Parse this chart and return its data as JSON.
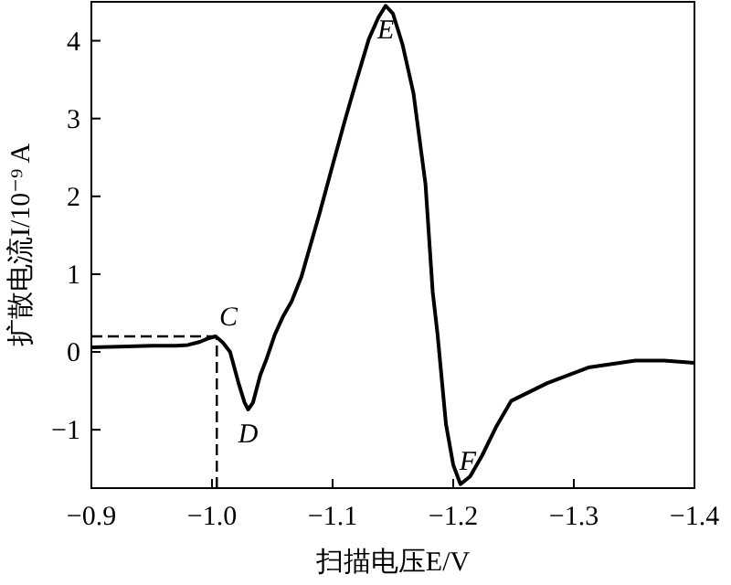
{
  "chart_data": {
    "type": "line",
    "xlabel": "扫描电压E/V",
    "ylabel": "扩散电流I/10⁻⁹ A",
    "x": [
      -0.9,
      -0.93,
      -0.95,
      -0.97,
      -0.98,
      -0.99,
      -0.996,
      -1.003,
      -1.009,
      -1.015,
      -1.022,
      -1.027,
      -1.03,
      -1.034,
      -1.04,
      -1.045,
      -1.052,
      -1.059,
      -1.066,
      -1.074,
      -1.089,
      -1.1,
      -1.111,
      -1.12,
      -1.13,
      -1.138,
      -1.144,
      -1.15,
      -1.158,
      -1.167,
      -1.177,
      -1.183,
      -1.187,
      -1.194,
      -1.2,
      -1.206,
      -1.214,
      -1.224,
      -1.236,
      -1.248,
      -1.278,
      -1.312,
      -1.351,
      -1.375,
      -1.4
    ],
    "series": [
      {
        "color": "#000000",
        "values": [
          0.06,
          0.07,
          0.08,
          0.08,
          0.09,
          0.13,
          0.17,
          0.2,
          0.12,
          0.0,
          -0.4,
          -0.65,
          -0.74,
          -0.65,
          -0.3,
          -0.1,
          0.22,
          0.46,
          0.65,
          0.96,
          1.77,
          2.4,
          3.02,
          3.5,
          4.02,
          4.3,
          4.45,
          4.35,
          3.95,
          3.33,
          2.16,
          0.77,
          0.23,
          -0.93,
          -1.45,
          -1.7,
          -1.6,
          -1.33,
          -0.95,
          -0.63,
          -0.4,
          -0.2,
          -0.11,
          -0.11,
          -0.14
        ]
      }
    ],
    "xlim": [
      -0.9,
      -1.4
    ],
    "xticks": [
      {
        "value": -0.9,
        "label": "−0.9"
      },
      {
        "value": -1.0,
        "label": "−1.0"
      },
      {
        "value": -1.1,
        "label": "−1.1"
      },
      {
        "value": -1.2,
        "label": "−1.2"
      },
      {
        "value": -1.3,
        "label": "−1.3"
      },
      {
        "value": -1.4,
        "label": "−1.4"
      }
    ],
    "ylim": [
      -1.75,
      4.5
    ],
    "yticks": [
      {
        "value": -1,
        "label": "−1"
      },
      0,
      1,
      2,
      3,
      4
    ],
    "ref_lines": [
      {
        "axis": "y",
        "value": 0.2,
        "line_style": "dashed",
        "color": "#000000"
      },
      {
        "axis": "x",
        "value": -1.004,
        "line_style": "dashed",
        "color": "#000000"
      }
    ],
    "annotations": [
      {
        "text": "C",
        "x": -1.003,
        "y": 0.2
      },
      {
        "text": "D",
        "x": -1.03,
        "y": -0.74
      },
      {
        "text": "E",
        "x": -1.144,
        "y": 4.45
      },
      {
        "text": "F",
        "x": -1.206,
        "y": -1.7
      }
    ],
    "grid": false,
    "marker": "none",
    "line_style": "solid"
  }
}
